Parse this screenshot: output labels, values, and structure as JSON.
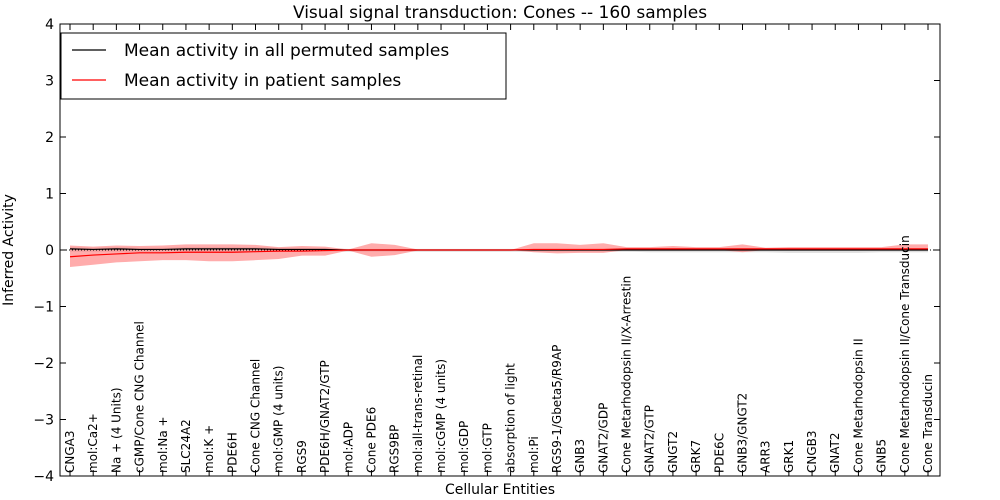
{
  "chart_data": {
    "type": "line",
    "title": "Visual signal transduction: Cones -- 160 samples",
    "xlabel": "Cellular Entities",
    "ylabel": "Inferred Activity",
    "ylim": [
      -4,
      4
    ],
    "yticks": [
      -4,
      -3,
      -2,
      -1,
      0,
      1,
      2,
      3,
      4
    ],
    "ytick_labels": [
      "−4",
      "−3",
      "−2",
      "−1",
      "0",
      "1",
      "2",
      "3",
      "4"
    ],
    "legend_position": "upper-left",
    "colors": {
      "permuted": "#000000",
      "patient": "#ff0000",
      "patient_band": "#ff8080",
      "permuted_band": "#c8c8c8"
    },
    "categories": [
      "CNGA3",
      "mol:Ca2+",
      "Na + (4 Units)",
      "cGMP/Cone CNG Channel",
      "mol:Na +",
      "SLC24A2",
      "mol:K +",
      "PDE6H",
      "Cone CNG Channel",
      "mol:GMP (4 units)",
      "RGS9",
      "PDE6H/GNAT2/GTP",
      "mol:ADP",
      "Cone PDE6",
      "RGS9BP",
      "mol:all-trans-retinal",
      "mol:cGMP (4 units)",
      "mol:GDP",
      "mol:GTP",
      "absorption of light",
      "mol:Pi",
      "RGS9-1/Gbeta5/R9AP",
      "GNB3",
      "GNAT2/GDP",
      "Cone Metarhodopsin II/X-Arrestin",
      "GNAT2/GTP",
      "GNGT2",
      "GRK7",
      "PDE6C",
      "GNB3/GNGT2",
      "ARR3",
      "GRK1",
      "CNGB3",
      "GNAT2",
      "Cone Metarhodopsin II",
      "GNB5",
      "Cone Metarhodopsin II/Cone Transducin",
      "Cone Transducin"
    ],
    "series": [
      {
        "name": "Mean activity in all permuted samples",
        "values": [
          0.02,
          0.01,
          0.02,
          0.01,
          0.01,
          0.02,
          0.02,
          0.02,
          0.02,
          0.01,
          0.01,
          0.01,
          0.0,
          0.0,
          0.0,
          0.0,
          0.0,
          0.0,
          0.0,
          0.0,
          0.0,
          0.0,
          0.0,
          0.0,
          0.0,
          0.0,
          0.0,
          0.0,
          0.0,
          0.0,
          0.0,
          0.0,
          0.0,
          0.0,
          0.0,
          0.0,
          0.0,
          0.0
        ],
        "band_upper": [
          0.05,
          0.04,
          0.05,
          0.04,
          0.04,
          0.05,
          0.05,
          0.05,
          0.05,
          0.04,
          0.04,
          0.03,
          0.02,
          0.02,
          0.02,
          0.02,
          0.02,
          0.02,
          0.02,
          0.02,
          0.02,
          0.02,
          0.02,
          0.02,
          0.02,
          0.02,
          0.02,
          0.02,
          0.02,
          0.02,
          0.02,
          0.02,
          0.02,
          0.02,
          0.02,
          0.02,
          0.02,
          0.02
        ],
        "band_lower": [
          -0.03,
          -0.03,
          -0.03,
          -0.03,
          -0.03,
          -0.03,
          -0.03,
          -0.03,
          -0.03,
          -0.03,
          -0.03,
          -0.03,
          -0.03,
          -0.03,
          -0.03,
          -0.03,
          -0.03,
          -0.03,
          -0.03,
          -0.03,
          -0.03,
          -0.03,
          -0.03,
          -0.03,
          -0.03,
          -0.04,
          -0.04,
          -0.04,
          -0.04,
          -0.04,
          -0.04,
          -0.05,
          -0.05,
          -0.05,
          -0.05,
          -0.04,
          -0.04,
          -0.04
        ]
      },
      {
        "name": "Mean activity in patient samples",
        "values": [
          -0.12,
          -0.09,
          -0.07,
          -0.05,
          -0.05,
          -0.04,
          -0.04,
          -0.04,
          -0.03,
          -0.02,
          -0.02,
          -0.01,
          0.0,
          0.0,
          0.0,
          0.0,
          0.0,
          0.0,
          0.0,
          0.0,
          0.01,
          0.01,
          0.01,
          0.01,
          0.02,
          0.02,
          0.02,
          0.02,
          0.02,
          0.02,
          0.02,
          0.02,
          0.02,
          0.02,
          0.02,
          0.02,
          0.02,
          0.02
        ],
        "band_upper": [
          0.08,
          0.06,
          0.08,
          0.07,
          0.08,
          0.1,
          0.1,
          0.1,
          0.09,
          0.05,
          0.07,
          0.06,
          0.01,
          0.12,
          0.09,
          0.01,
          0.0,
          0.0,
          0.0,
          0.0,
          0.12,
          0.12,
          0.09,
          0.12,
          0.05,
          0.05,
          0.07,
          0.05,
          0.05,
          0.1,
          0.04,
          0.05,
          0.05,
          0.05,
          0.05,
          0.05,
          0.1,
          0.1
        ],
        "band_lower": [
          -0.3,
          -0.26,
          -0.22,
          -0.2,
          -0.18,
          -0.18,
          -0.2,
          -0.2,
          -0.18,
          -0.16,
          -0.1,
          -0.1,
          -0.01,
          -0.12,
          -0.09,
          -0.01,
          0.0,
          0.0,
          0.0,
          0.0,
          -0.04,
          -0.06,
          -0.05,
          -0.05,
          0.0,
          0.0,
          0.0,
          0.0,
          0.0,
          -0.04,
          0.0,
          0.0,
          0.0,
          0.0,
          0.0,
          0.0,
          0.0,
          0.0
        ]
      }
    ]
  }
}
